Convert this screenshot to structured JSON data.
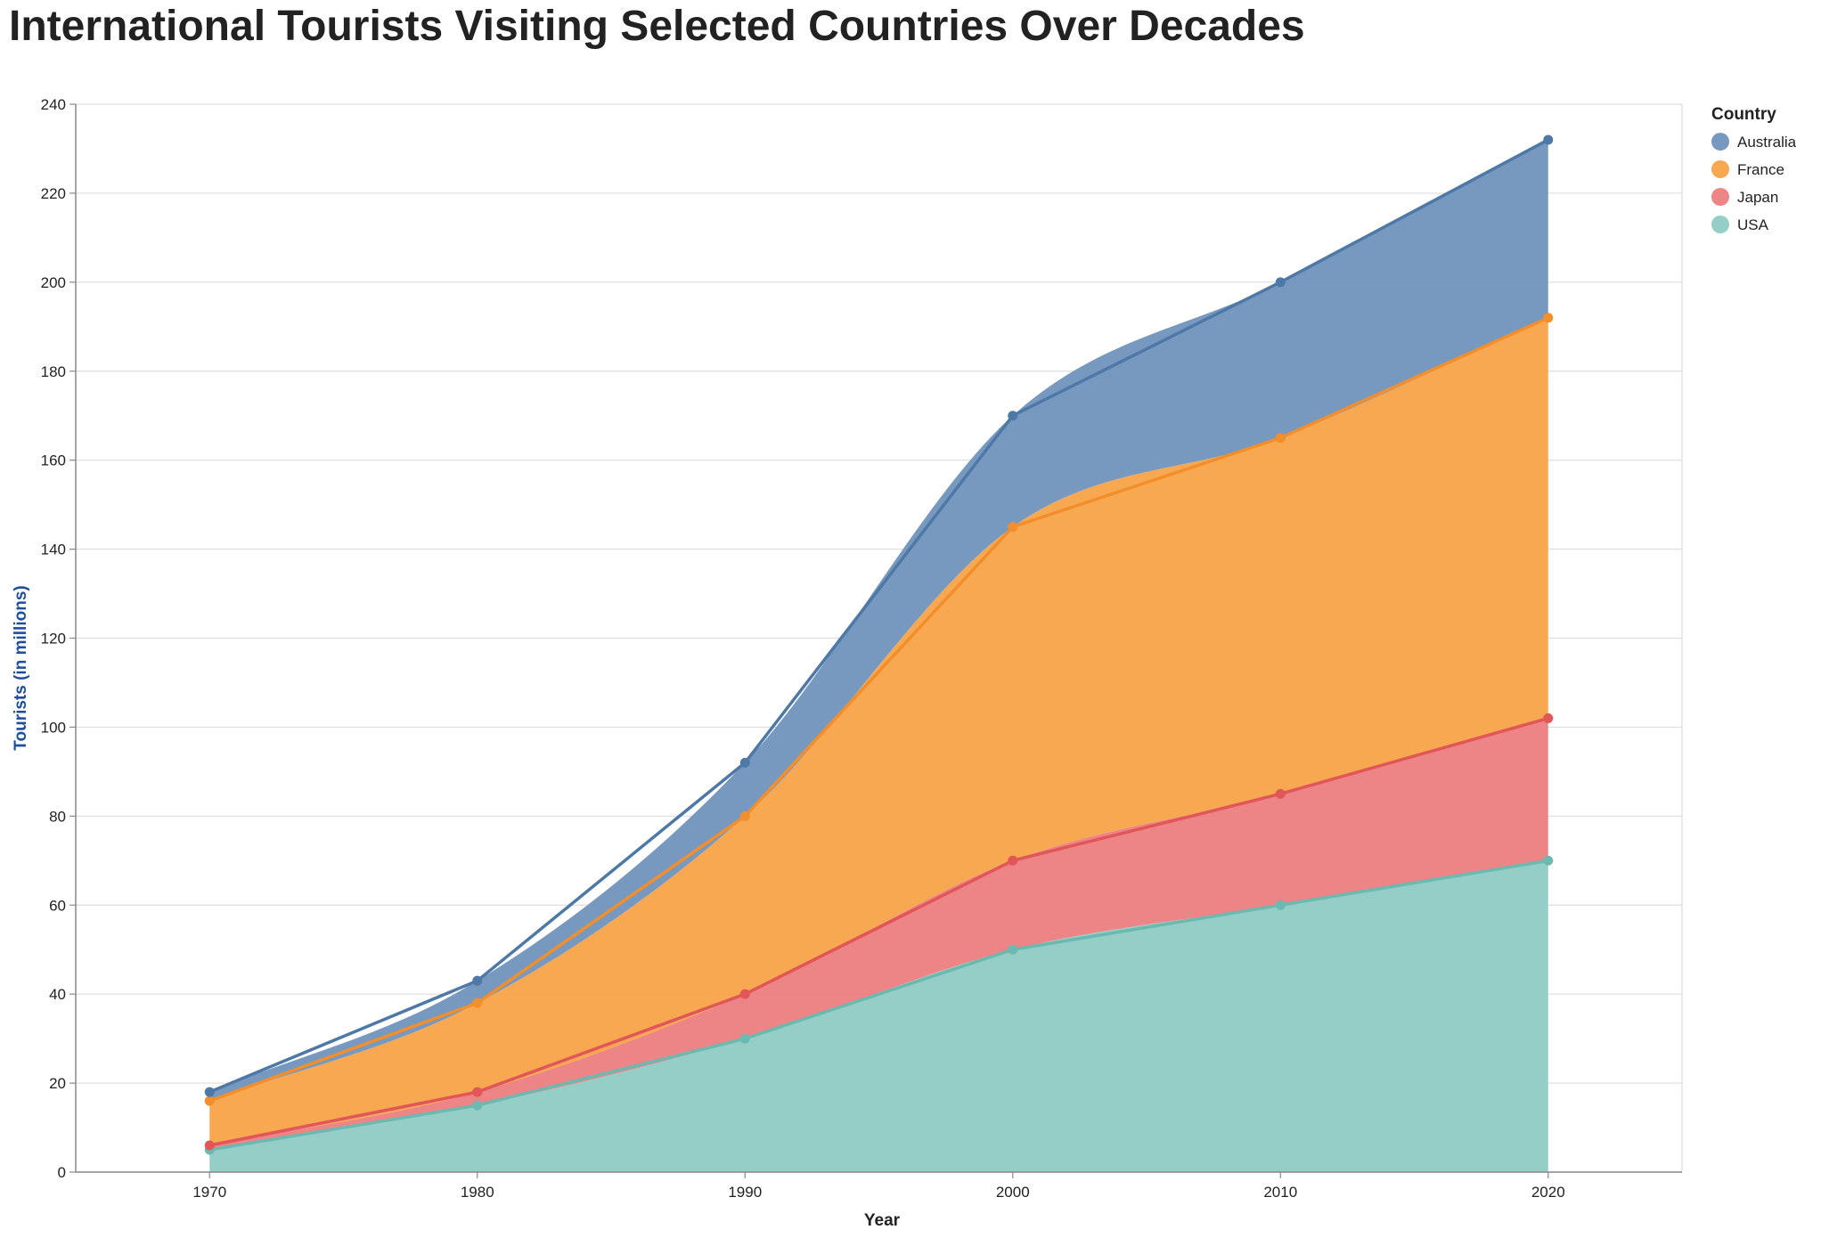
{
  "chart_data": {
    "type": "area",
    "stacked": true,
    "title": "International Tourists Visiting Selected Countries Over Decades",
    "xlabel": "Year",
    "ylabel": "Tourists (in millions)",
    "x": [
      1970,
      1980,
      1990,
      2000,
      2010,
      2020
    ],
    "xlim": [
      1965,
      2025
    ],
    "ylim": [
      0,
      240
    ],
    "yticks": [
      0,
      20,
      40,
      60,
      80,
      100,
      120,
      140,
      160,
      180,
      200,
      220,
      240
    ],
    "grid": true,
    "legend": {
      "title": "Country",
      "position": "right"
    },
    "series": [
      {
        "name": "USA",
        "values": [
          5,
          15,
          30,
          50,
          60,
          70
        ],
        "color": "#8ecbc4",
        "line_color": "#6bb9b0"
      },
      {
        "name": "Japan",
        "values": [
          1,
          3,
          10,
          20,
          25,
          32
        ],
        "color": "#ec7e7f",
        "line_color": "#e15759"
      },
      {
        "name": "France",
        "values": [
          10,
          20,
          40,
          75,
          80,
          90
        ],
        "color": "#f7a348",
        "line_color": "#f28e2b"
      },
      {
        "name": "Australia",
        "values": [
          2,
          5,
          12,
          25,
          35,
          40
        ],
        "color": "#7094bc",
        "line_color": "#4e79a7"
      }
    ],
    "legend_order": [
      "Australia",
      "France",
      "Japan",
      "USA"
    ]
  }
}
